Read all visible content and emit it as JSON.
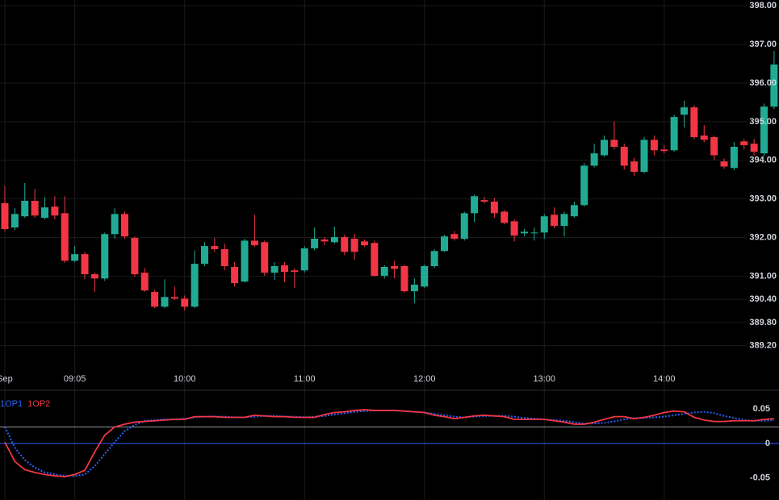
{
  "chart_data": [
    {
      "type": "candlestick",
      "categories": [
        "Sep",
        null,
        null,
        null,
        null,
        null,
        null,
        "09:05",
        null,
        null,
        null,
        null,
        null,
        null,
        null,
        null,
        null,
        null,
        "10:00",
        null,
        null,
        null,
        null,
        null,
        null,
        null,
        null,
        null,
        null,
        null,
        "11:00",
        null,
        null,
        null,
        null,
        null,
        null,
        null,
        null,
        null,
        null,
        null,
        "12:00",
        null,
        null,
        null,
        null,
        null,
        null,
        null,
        null,
        null,
        null,
        null,
        "13:00",
        null,
        null,
        null,
        null,
        null,
        null,
        null,
        null,
        null,
        null,
        null,
        "14:00",
        null,
        null,
        null,
        null,
        null,
        null,
        null,
        null,
        null,
        null,
        null
      ],
      "series": [
        {
          "open": [
            392.89,
            392.26,
            392.55,
            392.95,
            392.51,
            392.8,
            392.63,
            391.4,
            391.57,
            391.05,
            390.94,
            392.09,
            392.61,
            391.99,
            391.09,
            390.59,
            390.21,
            390.46,
            390.42,
            390.21,
            391.32,
            391.78,
            391.7,
            391.24,
            390.86,
            391.92,
            391.88,
            391.09,
            391.28,
            391.15,
            391.15,
            391.72,
            391.95,
            391.88,
            392.01,
            391.97,
            391.9,
            391.86,
            391.01,
            391.26,
            391.26,
            390.61,
            390.73,
            391.26,
            391.65,
            392.09,
            391.97,
            392.63,
            392.97,
            392.93,
            392.67,
            392.42,
            392.11,
            392.11,
            392.13,
            392.59,
            392.3,
            392.55,
            392.84,
            393.86,
            394.13,
            394.53,
            394.35,
            393.97,
            393.7,
            394.53,
            394.28,
            394.26,
            395.18,
            395.37,
            394.64,
            394.6,
            393.97,
            393.8,
            394.49,
            394.43,
            394.18,
            395.39
          ],
          "high": [
            393.34,
            392.76,
            393.41,
            393.26,
            393.05,
            393.07,
            393.07,
            391.78,
            391.63,
            391.09,
            392.13,
            392.76,
            392.67,
            392.03,
            391.21,
            390.65,
            390.92,
            390.73,
            390.5,
            391.67,
            391.88,
            391.99,
            391.84,
            391.36,
            391.97,
            392.59,
            391.92,
            391.36,
            391.36,
            391.21,
            391.78,
            392.26,
            392.01,
            392.28,
            392.07,
            392.09,
            391.95,
            391.92,
            391.28,
            391.4,
            391.3,
            390.94,
            391.3,
            391.7,
            392.07,
            392.17,
            392.67,
            393.11,
            393.05,
            393.03,
            392.72,
            392.47,
            392.22,
            392.26,
            392.61,
            392.78,
            392.67,
            392.93,
            393.93,
            394.43,
            394.64,
            395.01,
            394.43,
            394.07,
            394.6,
            394.64,
            394.39,
            395.18,
            395.54,
            395.43,
            394.91,
            394.64,
            394.05,
            394.47,
            394.55,
            394.55,
            395.47,
            396.83
          ],
          "low": [
            392.15,
            392.2,
            392.51,
            392.51,
            392.47,
            392.47,
            391.34,
            391.36,
            390.92,
            390.59,
            390.88,
            391.97,
            391.97,
            390.99,
            390.59,
            390.17,
            390.17,
            390.38,
            390.11,
            390.17,
            391.26,
            391.63,
            391.15,
            390.73,
            390.84,
            391.76,
            391.01,
            390.9,
            390.84,
            390.69,
            391.09,
            391.67,
            391.8,
            391.84,
            391.55,
            391.42,
            391.76,
            390.99,
            390.94,
            390.94,
            390.57,
            390.3,
            390.69,
            391.21,
            391.63,
            391.92,
            391.92,
            392.4,
            392.88,
            392.51,
            392.34,
            391.9,
            392.03,
            391.92,
            391.97,
            392.24,
            392.03,
            392.51,
            392.8,
            393.82,
            394.09,
            394.28,
            393.76,
            393.6,
            393.66,
            394.13,
            394.18,
            394.22,
            394.85,
            394.55,
            394.47,
            394.01,
            393.78,
            393.74,
            394.28,
            394.13,
            394.11,
            395.33
          ],
          "close": [
            392.22,
            392.61,
            392.95,
            392.57,
            392.78,
            392.57,
            391.4,
            391.57,
            391.05,
            390.94,
            392.09,
            392.61,
            392.03,
            391.05,
            390.63,
            390.21,
            390.46,
            390.42,
            390.21,
            391.32,
            391.78,
            391.7,
            391.26,
            390.82,
            391.92,
            391.8,
            391.09,
            391.26,
            391.11,
            391.11,
            391.72,
            391.97,
            391.9,
            392.01,
            391.63,
            391.63,
            391.8,
            391.01,
            391.24,
            391.19,
            390.61,
            390.78,
            391.26,
            391.65,
            392.03,
            391.97,
            392.63,
            393.07,
            392.93,
            392.63,
            392.38,
            392.05,
            392.15,
            392.13,
            392.55,
            392.3,
            392.61,
            392.84,
            393.86,
            394.18,
            394.53,
            394.35,
            393.86,
            393.7,
            394.53,
            394.26,
            394.24,
            395.12,
            395.37,
            394.6,
            394.53,
            394.13,
            393.84,
            394.35,
            394.39,
            394.22,
            395.39,
            396.48
          ]
        }
      ],
      "up_color": "#22ab94",
      "down_color": "#f23645",
      "ylim": [
        388.65,
        398.15
      ],
      "yticks": [
        {
          "value": 398,
          "label": "398.00"
        },
        {
          "value": 397,
          "label": "397.00"
        },
        {
          "value": 396,
          "label": "396.00"
        },
        {
          "value": 395,
          "label": "395.00"
        },
        {
          "value": 394,
          "label": "394.00"
        },
        {
          "value": 393,
          "label": "393.00"
        },
        {
          "value": 392,
          "label": "392.00"
        },
        {
          "value": 391,
          "label": "391.00"
        },
        {
          "value": 390.4,
          "label": "390.40"
        },
        {
          "value": 389.8,
          "label": "389.80"
        },
        {
          "value": 389.2,
          "label": "389.20"
        }
      ],
      "grid": true
    },
    {
      "type": "line",
      "legend_position": "top-left",
      "series": [
        {
          "name": "1OP1",
          "color": "#2962ff",
          "dashed": true,
          "values": [
            0.024,
            -0.006,
            -0.024,
            -0.035,
            -0.042,
            -0.045,
            -0.047,
            -0.047,
            -0.045,
            -0.033,
            -0.015,
            0.002,
            0.018,
            0.027,
            0.033,
            0.034,
            0.035,
            0.035,
            0.036,
            0.038,
            0.039,
            0.039,
            0.039,
            0.038,
            0.038,
            0.039,
            0.04,
            0.04,
            0.039,
            0.039,
            0.038,
            0.039,
            0.04,
            0.042,
            0.044,
            0.046,
            0.047,
            0.048,
            0.048,
            0.048,
            0.047,
            0.046,
            0.045,
            0.043,
            0.041,
            0.039,
            0.038,
            0.039,
            0.04,
            0.04,
            0.04,
            0.039,
            0.037,
            0.036,
            0.035,
            0.034,
            0.033,
            0.031,
            0.029,
            0.029,
            0.03,
            0.032,
            0.035,
            0.037,
            0.037,
            0.038,
            0.039,
            0.041,
            0.043,
            0.045,
            0.046,
            0.044,
            0.04,
            0.037,
            0.034,
            0.033,
            0.033,
            0.034
          ]
        },
        {
          "name": "1OP2",
          "color": "#f23645",
          "dashed": false,
          "values": [
            0.002,
            -0.026,
            -0.038,
            -0.042,
            -0.045,
            -0.047,
            -0.048,
            -0.045,
            -0.039,
            -0.012,
            0.012,
            0.024,
            0.028,
            0.031,
            0.032,
            0.033,
            0.034,
            0.035,
            0.035,
            0.039,
            0.039,
            0.039,
            0.038,
            0.038,
            0.038,
            0.041,
            0.04,
            0.039,
            0.039,
            0.038,
            0.038,
            0.038,
            0.042,
            0.045,
            0.046,
            0.048,
            0.049,
            0.048,
            0.048,
            0.048,
            0.047,
            0.046,
            0.045,
            0.041,
            0.039,
            0.036,
            0.038,
            0.04,
            0.041,
            0.04,
            0.039,
            0.035,
            0.035,
            0.035,
            0.035,
            0.033,
            0.031,
            0.028,
            0.028,
            0.031,
            0.035,
            0.039,
            0.039,
            0.036,
            0.038,
            0.041,
            0.045,
            0.047,
            0.046,
            0.038,
            0.034,
            0.032,
            0.032,
            0.033,
            0.033,
            0.033,
            0.035,
            0.036
          ]
        }
      ],
      "levels": [
        {
          "value": 0.024,
          "color": "#9598a1"
        },
        {
          "value": 0,
          "color": "#2962ff"
        }
      ],
      "ylim": [
        -0.082,
        0.076
      ],
      "yticks": [
        0.05,
        0,
        -0.05
      ]
    }
  ]
}
